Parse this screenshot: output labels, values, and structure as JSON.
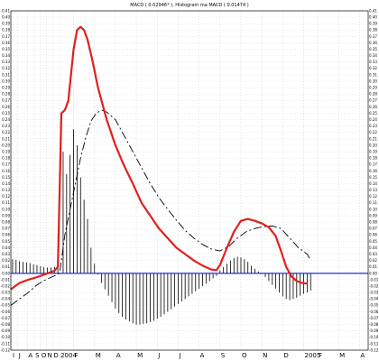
{
  "chart_data": {
    "type": "line",
    "title": "MACD ( 0.02946* ), Histogram ma MACD ( 0.01474 )",
    "xlabel": "",
    "ylabel": "",
    "ylim": [
      -0.12,
      0.41
    ],
    "y_ticks": [
      "-0.12",
      "-0.11",
      "-0.10",
      "-0.09",
      "-0.08",
      "-0.07",
      "-0.06",
      "-0.05",
      "-0.04",
      "-0.03",
      "-0.02",
      "-0.01",
      "0.00",
      "0.01",
      "0.02",
      "0.03",
      "0.04",
      "0.05",
      "0.06",
      "0.07",
      "0.08",
      "0.09",
      "0.10",
      "0.11",
      "0.12",
      "0.13",
      "0.14",
      "0.15",
      "0.16",
      "0.17",
      "0.18",
      "0.19",
      "0.20",
      "0.21",
      "0.22",
      "0.23",
      "0.24",
      "0.25",
      "0.26",
      "0.27",
      "0.28",
      "0.29",
      "0.30",
      "0.31",
      "0.32",
      "0.33",
      "0.34",
      "0.35",
      "0.36",
      "0.37",
      "0.38",
      "0.39",
      "0.40",
      "0.41"
    ],
    "x_ticks": [
      {
        "label": "I",
        "t": 0.5
      },
      {
        "label": "J",
        "t": 4
      },
      {
        "label": "A",
        "t": 9.5
      },
      {
        "label": "S",
        "t": 13.5
      },
      {
        "label": "O",
        "t": 17
      },
      {
        "label": "N",
        "t": 20.5
      },
      {
        "label": "D",
        "t": 24
      },
      {
        "label": "2004",
        "t": 28
      },
      {
        "label": "F",
        "t": 36
      },
      {
        "label": "M",
        "t": 48
      },
      {
        "label": "A",
        "t": 60
      },
      {
        "label": "M",
        "t": 72
      },
      {
        "label": "J",
        "t": 84
      },
      {
        "label": "J",
        "t": 96
      },
      {
        "label": "A",
        "t": 108
      },
      {
        "label": "S",
        "t": 120
      },
      {
        "label": "O",
        "t": 132
      },
      {
        "label": "N",
        "t": 144
      },
      {
        "label": "D",
        "t": 156
      },
      {
        "label": "2005",
        "t": 168
      },
      {
        "label": "F",
        "t": 176
      },
      {
        "label": "M",
        "t": 188
      },
      {
        "label": "A",
        "t": 200
      }
    ],
    "grid": true,
    "zero_line": 0,
    "series": [
      {
        "role": "macd",
        "color": "#e41e1e",
        "points": [
          [
            0,
            -0.025
          ],
          [
            5,
            -0.015
          ],
          [
            10,
            -0.01
          ],
          [
            15,
            -0.006
          ],
          [
            20,
            -0.001
          ],
          [
            25,
            0.004
          ],
          [
            27,
            0.01
          ],
          [
            29,
            0.25
          ],
          [
            31,
            0.255
          ],
          [
            33,
            0.27
          ],
          [
            36,
            0.35
          ],
          [
            38,
            0.38
          ],
          [
            40,
            0.385
          ],
          [
            42,
            0.38
          ],
          [
            44,
            0.365
          ],
          [
            47,
            0.33
          ],
          [
            50,
            0.29
          ],
          [
            55,
            0.24
          ],
          [
            60,
            0.2
          ],
          [
            65,
            0.168
          ],
          [
            70,
            0.14
          ],
          [
            75,
            0.11
          ],
          [
            80,
            0.09
          ],
          [
            85,
            0.07
          ],
          [
            90,
            0.055
          ],
          [
            95,
            0.04
          ],
          [
            100,
            0.03
          ],
          [
            105,
            0.02
          ],
          [
            110,
            0.012
          ],
          [
            115,
            0.006
          ],
          [
            118,
            0.005
          ],
          [
            120,
            0.013
          ],
          [
            124,
            0.04
          ],
          [
            128,
            0.065
          ],
          [
            132,
            0.082
          ],
          [
            136,
            0.085
          ],
          [
            140,
            0.082
          ],
          [
            144,
            0.078
          ],
          [
            148,
            0.072
          ],
          [
            152,
            0.058
          ],
          [
            155,
            0.035
          ],
          [
            158,
            0.01
          ],
          [
            161,
            -0.005
          ],
          [
            164,
            -0.012
          ],
          [
            167,
            -0.015
          ],
          [
            170,
            -0.016
          ]
        ]
      },
      {
        "role": "signal",
        "color": "#000000",
        "points": [
          [
            0,
            -0.05
          ],
          [
            5,
            -0.04
          ],
          [
            10,
            -0.03
          ],
          [
            15,
            -0.018
          ],
          [
            20,
            -0.01
          ],
          [
            25,
            -0.004
          ],
          [
            28,
            0.0
          ],
          [
            31,
            0.06
          ],
          [
            34,
            0.1
          ],
          [
            37,
            0.14
          ],
          [
            40,
            0.18
          ],
          [
            43,
            0.212
          ],
          [
            46,
            0.238
          ],
          [
            49,
            0.25
          ],
          [
            52,
            0.255
          ],
          [
            55,
            0.252
          ],
          [
            60,
            0.24
          ],
          [
            65,
            0.215
          ],
          [
            70,
            0.19
          ],
          [
            75,
            0.165
          ],
          [
            80,
            0.14
          ],
          [
            85,
            0.118
          ],
          [
            90,
            0.1
          ],
          [
            95,
            0.083
          ],
          [
            100,
            0.067
          ],
          [
            105,
            0.055
          ],
          [
            110,
            0.045
          ],
          [
            115,
            0.038
          ],
          [
            120,
            0.035
          ],
          [
            125,
            0.042
          ],
          [
            130,
            0.055
          ],
          [
            135,
            0.065
          ],
          [
            140,
            0.07
          ],
          [
            145,
            0.073
          ],
          [
            150,
            0.074
          ],
          [
            155,
            0.07
          ],
          [
            160,
            0.055
          ],
          [
            165,
            0.04
          ],
          [
            170,
            0.03
          ],
          [
            172,
            0.02
          ]
        ]
      },
      {
        "role": "histogram",
        "color": "#000000",
        "points": [
          [
            1,
            0.022
          ],
          [
            3,
            0.021
          ],
          [
            5,
            0.019
          ],
          [
            7,
            0.018
          ],
          [
            9,
            0.017
          ],
          [
            11,
            0.016
          ],
          [
            13,
            0.014
          ],
          [
            15,
            0.013
          ],
          [
            17,
            0.011
          ],
          [
            19,
            0.01
          ],
          [
            21,
            0.009
          ],
          [
            23,
            0.009
          ],
          [
            25,
            0.01
          ],
          [
            27,
            0.01
          ],
          [
            30,
            0.19
          ],
          [
            32,
            0.155
          ],
          [
            34,
            0.185
          ],
          [
            36,
            0.225
          ],
          [
            38,
            0.2
          ],
          [
            40,
            0.15
          ],
          [
            42,
            0.115
          ],
          [
            44,
            0.085
          ],
          [
            46,
            0.04
          ],
          [
            48,
            0.015
          ],
          [
            50,
            -0.002
          ],
          [
            52,
            -0.015
          ],
          [
            54,
            -0.025
          ],
          [
            56,
            -0.035
          ],
          [
            58,
            -0.045
          ],
          [
            60,
            -0.055
          ],
          [
            62,
            -0.062
          ],
          [
            64,
            -0.068
          ],
          [
            66,
            -0.072
          ],
          [
            68,
            -0.075
          ],
          [
            70,
            -0.078
          ],
          [
            72,
            -0.08
          ],
          [
            74,
            -0.08
          ],
          [
            76,
            -0.079
          ],
          [
            78,
            -0.078
          ],
          [
            80,
            -0.076
          ],
          [
            82,
            -0.074
          ],
          [
            84,
            -0.071
          ],
          [
            86,
            -0.068
          ],
          [
            88,
            -0.064
          ],
          [
            90,
            -0.06
          ],
          [
            92,
            -0.056
          ],
          [
            94,
            -0.052
          ],
          [
            96,
            -0.048
          ],
          [
            98,
            -0.044
          ],
          [
            100,
            -0.04
          ],
          [
            102,
            -0.036
          ],
          [
            104,
            -0.032
          ],
          [
            106,
            -0.028
          ],
          [
            108,
            -0.024
          ],
          [
            110,
            -0.02
          ],
          [
            112,
            -0.016
          ],
          [
            114,
            -0.012
          ],
          [
            116,
            -0.008
          ],
          [
            118,
            -0.004
          ],
          [
            120,
            0.005
          ],
          [
            122,
            0.01
          ],
          [
            124,
            0.015
          ],
          [
            126,
            0.02
          ],
          [
            128,
            0.024
          ],
          [
            130,
            0.026
          ],
          [
            132,
            0.025
          ],
          [
            134,
            0.022
          ],
          [
            136,
            0.018
          ],
          [
            138,
            0.012
          ],
          [
            140,
            0.007
          ],
          [
            142,
            0.003
          ],
          [
            144,
            0.001
          ],
          [
            146,
            -0.006
          ],
          [
            148,
            -0.012
          ],
          [
            150,
            -0.018
          ],
          [
            152,
            -0.024
          ],
          [
            154,
            -0.03
          ],
          [
            156,
            -0.036
          ],
          [
            158,
            -0.04
          ],
          [
            160,
            -0.042
          ],
          [
            162,
            -0.04
          ],
          [
            164,
            -0.038
          ],
          [
            166,
            -0.035
          ],
          [
            168,
            -0.032
          ],
          [
            170,
            -0.03
          ],
          [
            172,
            -0.027
          ]
        ]
      }
    ]
  }
}
